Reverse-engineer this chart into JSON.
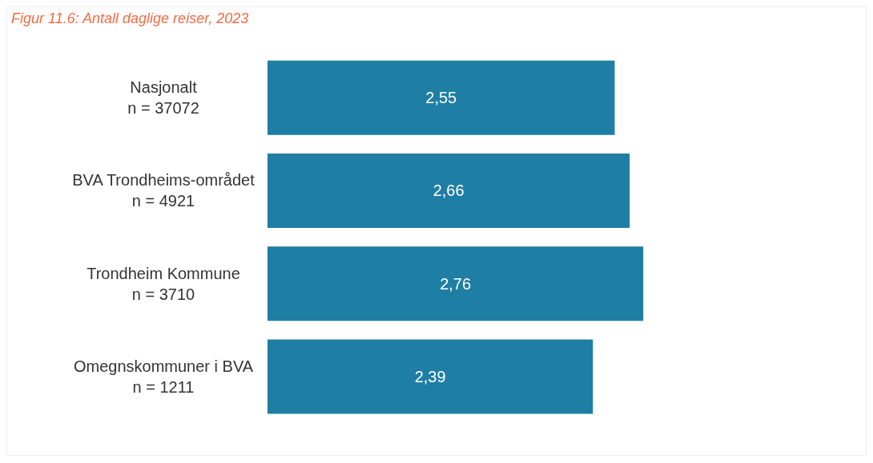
{
  "chart_data": {
    "type": "bar",
    "orientation": "horizontal",
    "title": "Figur 11.6: Antall daglige reiser, 2023",
    "categories": [
      "Nasjonalt\nn = 37072",
      "BVA Trondheims-området\nn = 4921",
      "Trondheim Kommune\nn = 3710",
      "Omegnskommuner i BVA\nn = 1211"
    ],
    "values": [
      2.55,
      2.66,
      2.76,
      2.39
    ],
    "value_labels": [
      "2,55",
      "2,66",
      "2,76",
      "2,39"
    ],
    "color": "#1f7ea3",
    "tick_labels": "y"
  }
}
